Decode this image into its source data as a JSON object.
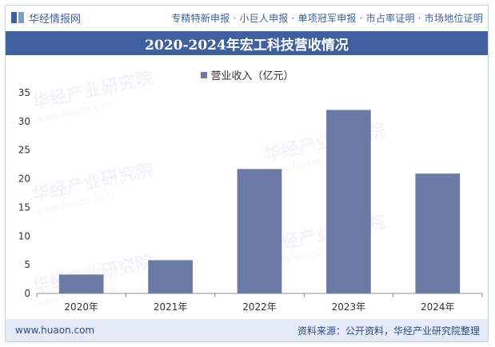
{
  "header": {
    "brand": "华经情报网",
    "services": "专精特新申报 · 小巨人申报 · 单项冠军申报 · 市占率证明 · 市场地位证明"
  },
  "colors": {
    "accent": "#3f5f9e",
    "bar": "#6b7ba6",
    "footer_bg": "#e4ebf6"
  },
  "watermark": {
    "text": "华经产业研究院",
    "url": "www.huaon.com"
  },
  "chart_data": {
    "type": "bar",
    "title": "2020-2024年宏工科技营收情况",
    "legend": "营业收入（亿元）",
    "categories": [
      "2020年",
      "2021年",
      "2022年",
      "2023年",
      "2024年"
    ],
    "values": [
      3.3,
      5.8,
      21.7,
      32.0,
      20.9
    ],
    "ylim": [
      0,
      35
    ],
    "yticks": [
      0,
      5,
      10,
      15,
      20,
      25,
      30,
      35
    ],
    "xlabel": "",
    "ylabel": ""
  },
  "footer": {
    "site": "www.huaon.com",
    "source": "资料来源：公开资料，华经产业研究院整理"
  }
}
